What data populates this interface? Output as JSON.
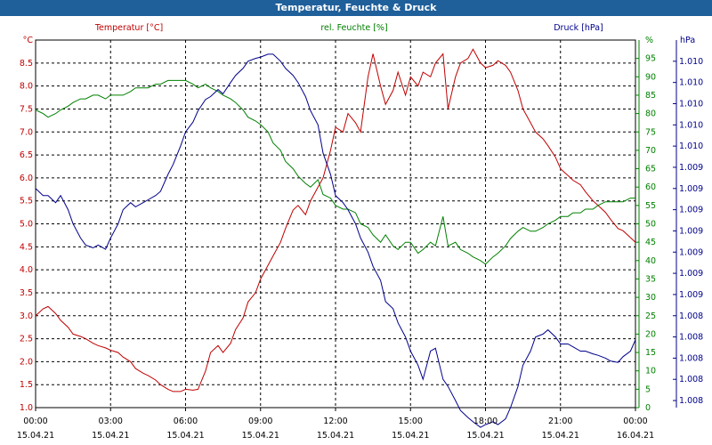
{
  "window": {
    "title": "Temperatur, Feuchte & Druck"
  },
  "colors": {
    "temperature": "#c00000",
    "humidity": "#008000",
    "pressure": "#00008b",
    "title_bar": "#1f5f9a",
    "grid": "#000000"
  },
  "chart_data": {
    "type": "line",
    "grid": true,
    "x_ticks": [
      {
        "time": "00:00",
        "date": "15.04.21"
      },
      {
        "time": "03:00",
        "date": "15.04.21"
      },
      {
        "time": "06:00",
        "date": "15.04.21"
      },
      {
        "time": "09:00",
        "date": "15.04.21"
      },
      {
        "time": "12:00",
        "date": "15.04.21"
      },
      {
        "time": "15:00",
        "date": "15.04.21"
      },
      {
        "time": "18:00",
        "date": "15.04.21"
      },
      {
        "time": "21:00",
        "date": "15.04.21"
      },
      {
        "time": "00:00",
        "date": "16.04.21"
      }
    ],
    "x_range_hours": [
      0,
      24
    ],
    "axes": {
      "left": {
        "title": "Temperatur [°C]",
        "unit": "°C",
        "range": [
          1.0,
          9.0
        ],
        "ticks": [
          "1.0",
          "1.5",
          "2.0",
          "2.5",
          "3.0",
          "3.5",
          "4.0",
          "4.5",
          "5.0",
          "5.5",
          "6.0",
          "6.5",
          "7.0",
          "7.5",
          "8.0",
          "8.5"
        ]
      },
      "right1": {
        "title": "rel. Feuchte [%]",
        "unit": "%",
        "range": [
          0,
          100
        ],
        "ticks": [
          "0",
          "5",
          "10",
          "15",
          "20",
          "25",
          "30",
          "35",
          "40",
          "45",
          "50",
          "55",
          "60",
          "65",
          "70",
          "75",
          "80",
          "85",
          "90",
          "95"
        ]
      },
      "right2": {
        "title": "Druck [hPa]",
        "unit": "hPa",
        "range": [
          1007.8,
          1010.4
        ],
        "ticks": [
          {
            "value": 1007.85,
            "label": "1.008"
          },
          {
            "value": 1008.0,
            "label": "1.008"
          },
          {
            "value": 1008.15,
            "label": "1.008"
          },
          {
            "value": 1008.3,
            "label": "1.008"
          },
          {
            "value": 1008.45,
            "label": "1.008"
          },
          {
            "value": 1008.6,
            "label": "1.009"
          },
          {
            "value": 1008.75,
            "label": "1.009"
          },
          {
            "value": 1008.9,
            "label": "1.009"
          },
          {
            "value": 1009.05,
            "label": "1.009"
          },
          {
            "value": 1009.2,
            "label": "1.009"
          },
          {
            "value": 1009.35,
            "label": "1.009"
          },
          {
            "value": 1009.5,
            "label": "1.009"
          },
          {
            "value": 1009.65,
            "label": "1.010"
          },
          {
            "value": 1009.8,
            "label": "1.010"
          },
          {
            "value": 1009.95,
            "label": "1.010"
          },
          {
            "value": 1010.1,
            "label": "1.010"
          },
          {
            "value": 1010.25,
            "label": "1.010"
          }
        ]
      }
    },
    "series": [
      {
        "name": "Temperatur [°C]",
        "axis": "left",
        "color": "#c00000",
        "x": [
          0,
          0.3,
          0.5,
          0.8,
          1.0,
          1.3,
          1.5,
          1.8,
          2.0,
          2.3,
          2.5,
          2.8,
          3.0,
          3.3,
          3.5,
          3.8,
          4.0,
          4.3,
          4.5,
          4.8,
          5.0,
          5.3,
          5.5,
          5.8,
          6.0,
          6.3,
          6.5,
          6.8,
          7.0,
          7.3,
          7.5,
          7.8,
          8.0,
          8.3,
          8.5,
          8.8,
          9.0,
          9.3,
          9.5,
          9.8,
          10.0,
          10.3,
          10.5,
          10.8,
          11.0,
          11.3,
          11.5,
          11.8,
          12.0,
          12.3,
          12.5,
          12.8,
          13.0,
          13.3,
          13.5,
          13.8,
          14.0,
          14.3,
          14.5,
          14.8,
          15.0,
          15.3,
          15.5,
          15.8,
          16.0,
          16.3,
          16.5,
          16.8,
          17.0,
          17.3,
          17.5,
          17.8,
          18.0,
          18.3,
          18.5,
          18.8,
          19.0,
          19.3,
          19.5,
          19.8,
          20.0,
          20.3,
          20.5,
          20.8,
          21.0,
          21.3,
          21.5,
          21.8,
          22.0,
          22.3,
          22.5,
          22.8,
          23.0,
          23.3,
          23.5,
          23.8,
          24.0
        ],
        "y": [
          3.0,
          3.15,
          3.2,
          3.05,
          2.9,
          2.75,
          2.6,
          2.55,
          2.5,
          2.4,
          2.35,
          2.3,
          2.25,
          2.2,
          2.1,
          2.0,
          1.85,
          1.75,
          1.7,
          1.6,
          1.5,
          1.4,
          1.35,
          1.35,
          1.4,
          1.38,
          1.4,
          1.8,
          2.2,
          2.35,
          2.2,
          2.4,
          2.7,
          2.95,
          3.3,
          3.5,
          3.8,
          4.1,
          4.3,
          4.6,
          4.9,
          5.3,
          5.4,
          5.2,
          5.5,
          5.8,
          6.0,
          6.6,
          7.1,
          7.0,
          7.4,
          7.2,
          7.0,
          8.2,
          8.7,
          8.0,
          7.6,
          7.9,
          8.3,
          7.8,
          8.2,
          8.0,
          8.3,
          8.2,
          8.5,
          8.7,
          7.5,
          8.2,
          8.5,
          8.6,
          8.8,
          8.5,
          8.4,
          8.45,
          8.55,
          8.45,
          8.3,
          7.9,
          7.5,
          7.2,
          7.0,
          6.85,
          6.7,
          6.45,
          6.2,
          6.05,
          5.95,
          5.85,
          5.7,
          5.5,
          5.4,
          5.25,
          5.1,
          4.9,
          4.85,
          4.7,
          4.6
        ]
      },
      {
        "name": "rel. Feuchte [%]",
        "axis": "right1",
        "color": "#008000",
        "x": [
          0,
          0.3,
          0.5,
          0.8,
          1.0,
          1.3,
          1.5,
          1.8,
          2.0,
          2.3,
          2.5,
          2.8,
          3.0,
          3.3,
          3.5,
          3.8,
          4.0,
          4.3,
          4.5,
          4.8,
          5.0,
          5.3,
          5.5,
          5.8,
          6.0,
          6.3,
          6.5,
          6.8,
          7.0,
          7.3,
          7.5,
          7.8,
          8.0,
          8.3,
          8.5,
          8.8,
          9.0,
          9.3,
          9.5,
          9.8,
          10.0,
          10.3,
          10.5,
          10.8,
          11.0,
          11.3,
          11.5,
          11.8,
          12.0,
          12.3,
          12.5,
          12.8,
          13.0,
          13.3,
          13.5,
          13.8,
          14.0,
          14.3,
          14.5,
          14.8,
          15.0,
          15.3,
          15.5,
          15.8,
          16.0,
          16.3,
          16.5,
          16.8,
          17.0,
          17.3,
          17.5,
          17.8,
          18.0,
          18.3,
          18.5,
          18.8,
          19.0,
          19.3,
          19.5,
          19.8,
          20.0,
          20.3,
          20.5,
          20.8,
          21.0,
          21.3,
          21.5,
          21.8,
          22.0,
          22.3,
          22.5,
          22.8,
          23.0,
          23.3,
          23.5,
          23.8,
          24.0
        ],
        "y": [
          81,
          80,
          79,
          80,
          81,
          82,
          83,
          84,
          84,
          85,
          85,
          84,
          85,
          85,
          85,
          86,
          87,
          87,
          87,
          88,
          88,
          89,
          89,
          89,
          89,
          88,
          87,
          88,
          87,
          86,
          85,
          84,
          83,
          81,
          79,
          78,
          77,
          75,
          72,
          70,
          67,
          65,
          63,
          61,
          60,
          62,
          58,
          57,
          55,
          54,
          54,
          53,
          50,
          49,
          47,
          45,
          47,
          44,
          43,
          45,
          45,
          42,
          43,
          45,
          44,
          52,
          44,
          45,
          43,
          42,
          41,
          40,
          39,
          41,
          42,
          44,
          46,
          48,
          49,
          48,
          48,
          49,
          50,
          51,
          52,
          52,
          53,
          53,
          54,
          54,
          55,
          56,
          56,
          56,
          56,
          57,
          57
        ]
      },
      {
        "name": "Druck [hPa]",
        "axis": "right2",
        "color": "#00008b",
        "x": [
          0,
          0.3,
          0.5,
          0.8,
          1.0,
          1.3,
          1.5,
          1.8,
          2.0,
          2.3,
          2.5,
          2.8,
          3.0,
          3.3,
          3.5,
          3.8,
          4.0,
          4.3,
          4.5,
          4.8,
          5.0,
          5.3,
          5.5,
          5.8,
          6.0,
          6.3,
          6.5,
          6.8,
          7.0,
          7.3,
          7.5,
          7.8,
          8.0,
          8.3,
          8.5,
          8.8,
          9.0,
          9.3,
          9.5,
          9.8,
          10.0,
          10.3,
          10.5,
          10.8,
          11.0,
          11.3,
          11.5,
          11.8,
          12.0,
          12.3,
          12.5,
          12.8,
          13.0,
          13.3,
          13.5,
          13.8,
          14.0,
          14.3,
          14.5,
          14.8,
          15.0,
          15.3,
          15.5,
          15.8,
          16.0,
          16.3,
          16.5,
          16.8,
          17.0,
          17.3,
          17.5,
          17.8,
          18.0,
          18.3,
          18.5,
          18.8,
          19.0,
          19.3,
          19.5,
          19.8,
          20.0,
          20.3,
          20.5,
          20.8,
          21.0,
          21.3,
          21.5,
          21.8,
          22.0,
          22.3,
          22.5,
          22.8,
          23.0,
          23.3,
          23.5,
          23.8,
          24.0
        ],
        "y": [
          1009.35,
          1009.3,
          1009.3,
          1009.25,
          1009.3,
          1009.2,
          1009.1,
          1009.0,
          1008.95,
          1008.93,
          1008.95,
          1008.92,
          1009.0,
          1009.1,
          1009.2,
          1009.25,
          1009.22,
          1009.25,
          1009.27,
          1009.3,
          1009.33,
          1009.45,
          1009.52,
          1009.65,
          1009.75,
          1009.82,
          1009.9,
          1009.98,
          1010.0,
          1010.05,
          1010.02,
          1010.1,
          1010.15,
          1010.2,
          1010.25,
          1010.27,
          1010.28,
          1010.3,
          1010.3,
          1010.25,
          1010.2,
          1010.15,
          1010.1,
          1010.0,
          1009.9,
          1009.8,
          1009.6,
          1009.45,
          1009.3,
          1009.25,
          1009.2,
          1009.1,
          1009.0,
          1008.9,
          1008.8,
          1008.7,
          1008.55,
          1008.5,
          1008.4,
          1008.3,
          1008.2,
          1008.1,
          1008.0,
          1008.2,
          1008.22,
          1008.0,
          1007.95,
          1007.85,
          1007.78,
          1007.73,
          1007.7,
          1007.66,
          1007.68,
          1007.7,
          1007.68,
          1007.72,
          1007.8,
          1007.95,
          1008.1,
          1008.2,
          1008.3,
          1008.32,
          1008.35,
          1008.3,
          1008.25,
          1008.25,
          1008.23,
          1008.2,
          1008.2,
          1008.18,
          1008.17,
          1008.15,
          1008.13,
          1008.12,
          1008.16,
          1008.2,
          1008.28
        ]
      }
    ]
  }
}
